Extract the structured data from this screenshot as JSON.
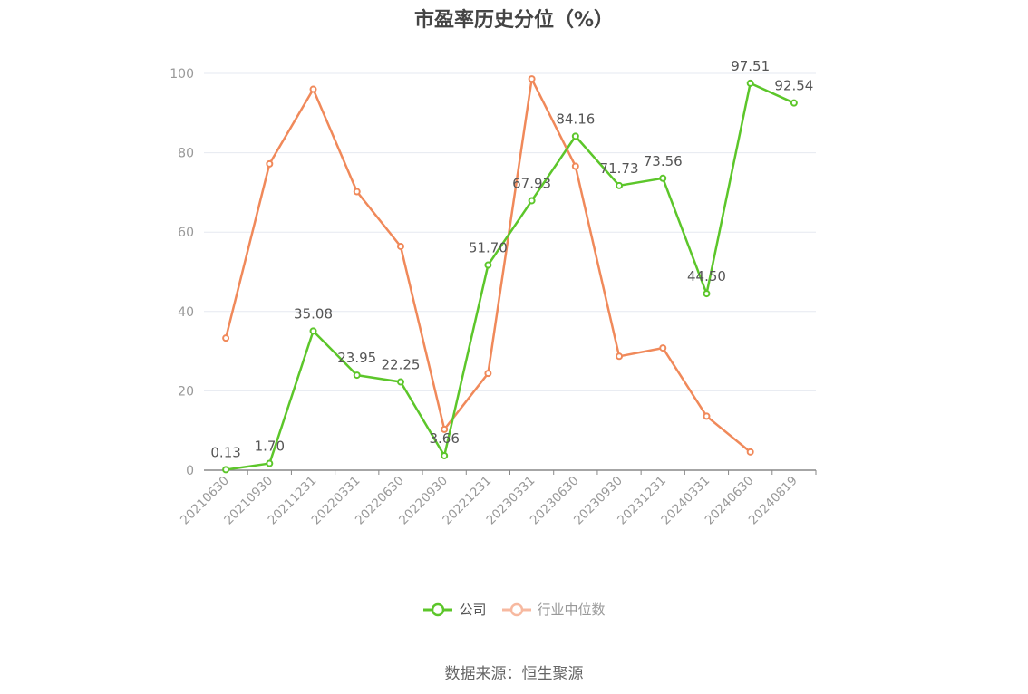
{
  "title": "市盈率历史分位（%）",
  "source": "数据来源：恒生聚源",
  "colors": {
    "company": "#5cc62a",
    "industry": "#f0895a",
    "industry_legend": "#f7b9a0",
    "grid": "#e6e9f0",
    "axis": "#999999"
  },
  "chart_data": {
    "type": "line",
    "title": "市盈率历史分位（%）",
    "categories": [
      "20210630",
      "20210930",
      "20211231",
      "20220331",
      "20220630",
      "20220930",
      "20221231",
      "20230331",
      "20230630",
      "20230930",
      "20231231",
      "20240331",
      "20240630",
      "20240819"
    ],
    "ylim": [
      0,
      100
    ],
    "yticks": [
      0,
      20,
      40,
      60,
      80,
      100
    ],
    "grid": true,
    "legend_position": "bottom",
    "series": [
      {
        "name": "公司",
        "values": [
          0.13,
          1.7,
          35.08,
          23.95,
          22.25,
          3.66,
          51.7,
          67.93,
          84.16,
          71.73,
          73.56,
          44.5,
          97.51,
          92.54
        ],
        "labels": [
          "0.13",
          "1.70",
          "35.08",
          "23.95",
          "22.25",
          "3.66",
          "51.70",
          "67.93",
          "84.16",
          "71.73",
          "73.56",
          "44.50",
          "97.51",
          "92.54"
        ]
      },
      {
        "name": "行业中位数",
        "values": [
          33.3,
          77.2,
          96.0,
          70.2,
          56.4,
          10.3,
          24.4,
          98.6,
          76.6,
          28.7,
          30.8,
          13.6,
          4.6,
          null
        ]
      }
    ]
  }
}
